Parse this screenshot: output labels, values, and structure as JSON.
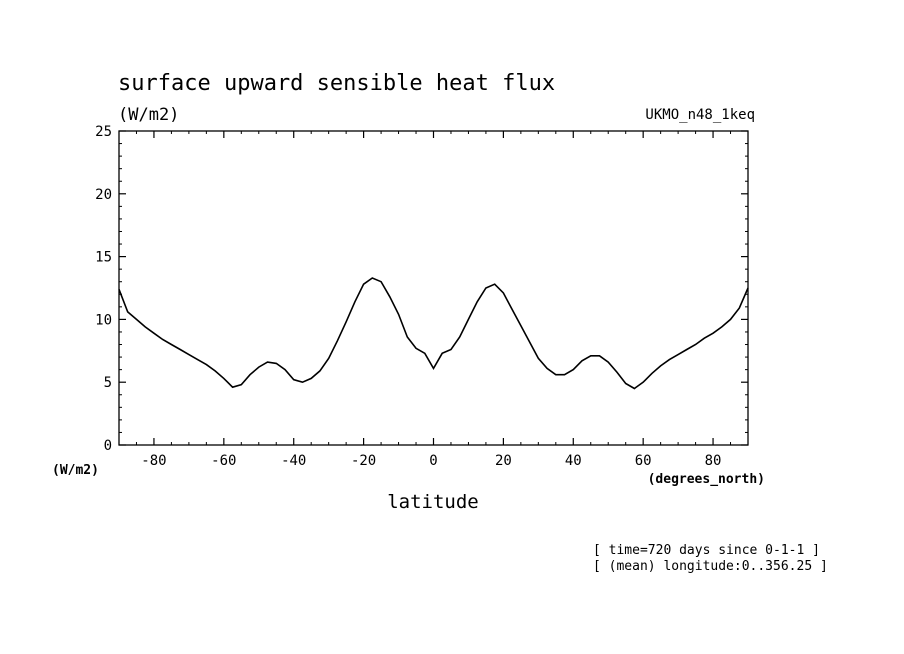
{
  "chart_data": {
    "type": "line",
    "title": "surface upward sensible heat flux",
    "units_label": "(W/m2)",
    "model_label": "UKMO_n48_1keq",
    "xlabel": "latitude",
    "x_units": "(degrees_north)",
    "y_units": "(W/m2)",
    "xlim": [
      -90,
      90
    ],
    "ylim": [
      0,
      25
    ],
    "x_ticks": [
      -80,
      -60,
      -40,
      -20,
      0,
      20,
      40,
      60,
      80
    ],
    "x_tick_labels": [
      "-80",
      "-60",
      "-40",
      "-20",
      "0",
      "20",
      "40",
      "60",
      "80"
    ],
    "y_ticks": [
      0,
      5,
      10,
      15,
      20,
      25
    ],
    "y_tick_labels": [
      "0",
      "5",
      "10",
      "15",
      "20",
      "25"
    ],
    "grid": false,
    "notes": [
      "[ time=720 days since 0-1-1 ]",
      "[ (mean) longitude:0..356.25 ]"
    ],
    "x": [
      -90,
      -87.5,
      -85,
      -82.5,
      -80,
      -77.5,
      -75,
      -72.5,
      -70,
      -67.5,
      -65,
      -62.5,
      -60,
      -57.5,
      -55,
      -52.5,
      -50,
      -47.5,
      -45,
      -42.5,
      -40,
      -37.5,
      -35,
      -32.5,
      -30,
      -27.5,
      -25,
      -22.5,
      -20,
      -17.5,
      -15,
      -12.5,
      -10,
      -7.5,
      -5,
      -2.5,
      0,
      2.5,
      5,
      7.5,
      10,
      12.5,
      15,
      17.5,
      20,
      22.5,
      25,
      27.5,
      30,
      32.5,
      35,
      37.5,
      40,
      42.5,
      45,
      47.5,
      50,
      52.5,
      55,
      57.5,
      60,
      62.5,
      65,
      67.5,
      70,
      72.5,
      75,
      77.5,
      80,
      82.5,
      85,
      87.5,
      90
    ],
    "y": [
      12.4,
      10.6,
      10.0,
      9.4,
      8.9,
      8.4,
      8.0,
      7.6,
      7.2,
      6.8,
      6.4,
      5.9,
      5.3,
      4.6,
      4.8,
      5.6,
      6.2,
      6.6,
      6.5,
      6.0,
      5.2,
      5.0,
      5.3,
      5.9,
      6.9,
      8.3,
      9.8,
      11.4,
      12.8,
      13.3,
      13.0,
      11.8,
      10.4,
      8.6,
      7.7,
      7.3,
      6.1,
      7.3,
      7.6,
      8.6,
      10.0,
      11.4,
      12.5,
      12.8,
      12.1,
      10.8,
      9.5,
      8.2,
      6.9,
      6.1,
      5.6,
      5.6,
      6.0,
      6.7,
      7.1,
      7.1,
      6.6,
      5.8,
      4.9,
      4.5,
      5.0,
      5.7,
      6.3,
      6.8,
      7.2,
      7.6,
      8.0,
      8.5,
      8.9,
      9.4,
      10.0,
      10.9,
      12.5
    ]
  }
}
